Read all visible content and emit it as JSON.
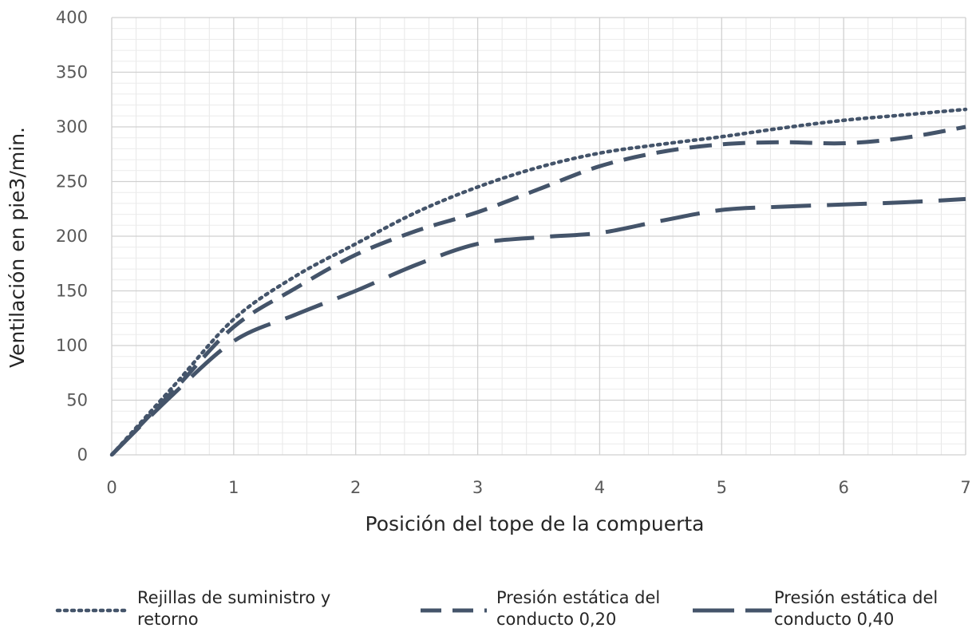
{
  "chart_data": {
    "type": "line",
    "title": "",
    "xlabel": "Posición del tope de la compuerta",
    "ylabel": "Ventilación en pie3/min.",
    "xlim": [
      0,
      7
    ],
    "ylim": [
      0,
      400
    ],
    "x_ticks": [
      "0",
      "1",
      "2",
      "3",
      "4",
      "5",
      "6",
      "7"
    ],
    "y_ticks": [
      "0",
      "50",
      "100",
      "150",
      "200",
      "250",
      "300",
      "350",
      "400"
    ],
    "grid": true,
    "minor_grid": true,
    "legend_position": "bottom",
    "series_color": "#44546a",
    "series": [
      {
        "name": "Rejillas de suministro y retorno",
        "style": "dotted",
        "x": [
          0,
          0.5,
          1,
          1.5,
          2,
          2.5,
          3,
          3.5,
          4,
          4.5,
          5,
          5.5,
          6,
          6.5,
          7
        ],
        "y": [
          0,
          62,
          124,
          163,
          193,
          222,
          245,
          263,
          276,
          284,
          291,
          299,
          306,
          311,
          316
        ]
      },
      {
        "name": "Presión estática del conducto 0,20",
        "style": "dashed",
        "x": [
          0,
          0.5,
          1,
          1.5,
          2,
          2.5,
          3,
          3.5,
          4,
          4.5,
          5,
          5.5,
          6,
          6.5,
          7
        ],
        "y": [
          0,
          58,
          117,
          152,
          183,
          205,
          222,
          243,
          264,
          277,
          284,
          286,
          285,
          290,
          300
        ]
      },
      {
        "name": "Presión estática del conducto 0,40",
        "style": "longdash",
        "x": [
          0,
          0.5,
          1,
          1.5,
          2,
          2.5,
          3,
          3.5,
          4,
          4.5,
          5,
          5.5,
          6,
          6.5,
          7
        ],
        "y": [
          0,
          55,
          104,
          128,
          150,
          174,
          193,
          199,
          203,
          214,
          224,
          227,
          229,
          231,
          234
        ]
      }
    ],
    "legend": [
      {
        "lines": [
          "Rejillas de suministro y",
          "retorno"
        ]
      },
      {
        "lines": [
          "Presión estática del",
          "conducto 0,20"
        ]
      },
      {
        "lines": [
          "Presión estática del",
          "conducto 0,40"
        ]
      }
    ]
  }
}
